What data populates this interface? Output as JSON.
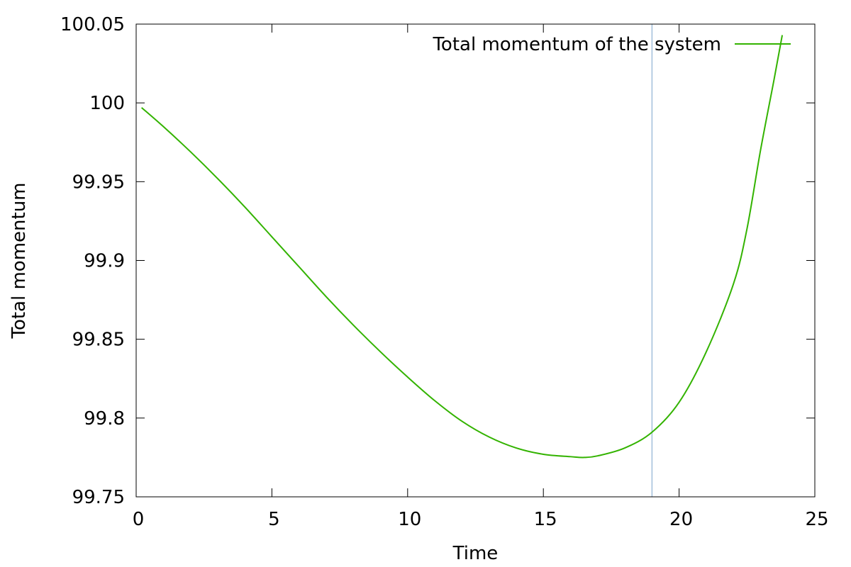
{
  "chart_data": {
    "type": "line",
    "title": "",
    "xlabel": "Time",
    "ylabel": "Total momentum",
    "xlim": [
      0,
      25
    ],
    "ylim": [
      99.75,
      100.05
    ],
    "xticks": [
      0,
      5,
      10,
      15,
      20,
      25
    ],
    "yticks": [
      99.75,
      99.8,
      99.85,
      99.9,
      99.95,
      100,
      100.05
    ],
    "xtick_labels": [
      "0",
      "5",
      "10",
      "15",
      "20",
      "25"
    ],
    "ytick_labels": [
      "99.75",
      "99.8",
      "99.85",
      "99.9",
      "99.95",
      "100",
      "100.05"
    ],
    "grid": false,
    "legend_position": "top-right",
    "series": [
      {
        "name": "Total momentum of the system",
        "color": "#33b300",
        "x": [
          0.2,
          1,
          2,
          3,
          4,
          5,
          6,
          7,
          8,
          9,
          10,
          11,
          12,
          13,
          14,
          15,
          16,
          16.5,
          17,
          18,
          19,
          20,
          21,
          22,
          22.5,
          23,
          23.5,
          23.8
        ],
        "y": [
          99.997,
          99.985,
          99.969,
          99.952,
          99.934,
          99.915,
          99.896,
          99.877,
          99.859,
          99.842,
          99.826,
          99.811,
          99.798,
          99.788,
          99.781,
          99.777,
          99.7755,
          99.775,
          99.776,
          99.781,
          99.791,
          99.81,
          99.842,
          99.885,
          99.92,
          99.97,
          100.015,
          100.043
        ]
      }
    ],
    "annotations": [
      {
        "type": "vertical_line",
        "x": 19.0,
        "color": "#7aa3cc"
      }
    ]
  }
}
